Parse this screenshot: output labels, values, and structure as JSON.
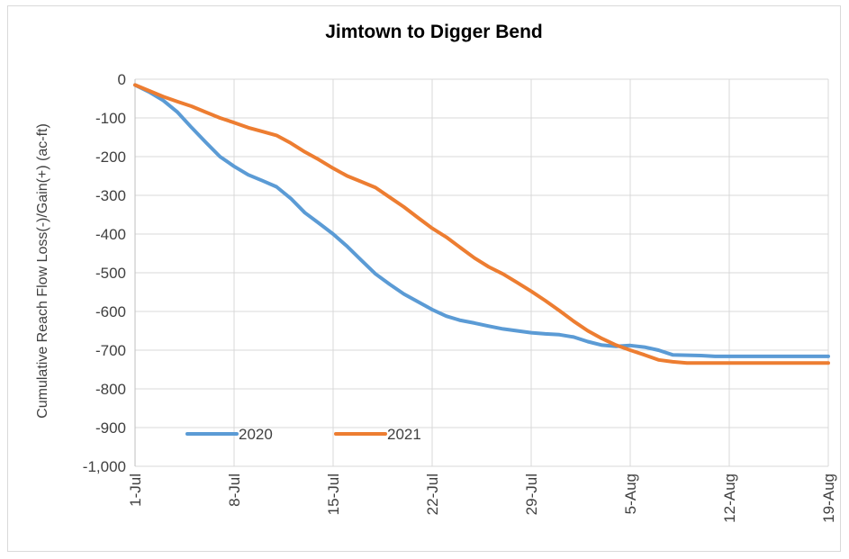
{
  "chart_data": {
    "type": "line",
    "title": "Jimtown to Digger Bend",
    "xlabel": "",
    "ylabel": "Cumulative Reach Flow Loss(-)/Gain(+)  (ac-ft)",
    "x_tick_labels": [
      "1-Jul",
      "8-Jul",
      "15-Jul",
      "22-Jul",
      "29-Jul",
      "5-Aug",
      "12-Aug",
      "19-Aug"
    ],
    "y_tick_labels": [
      "0",
      "-100",
      "-200",
      "-300",
      "-400",
      "-500",
      "-600",
      "-700",
      "-800",
      "-900",
      "-1,000"
    ],
    "ylim": [
      -1000,
      0
    ],
    "xlim": [
      0,
      49
    ],
    "grid": true,
    "legend_position": "bottom-left",
    "x_day_offsets": [
      0,
      1,
      2,
      3,
      4,
      5,
      6,
      7,
      8,
      9,
      10,
      11,
      12,
      13,
      14,
      15,
      16,
      17,
      18,
      19,
      20,
      21,
      22,
      23,
      24,
      25,
      26,
      27,
      28,
      29,
      30,
      31,
      32,
      33,
      34,
      35,
      36,
      37,
      38,
      39,
      40,
      41,
      42,
      43,
      44,
      45,
      46,
      47,
      48,
      49
    ],
    "series": [
      {
        "name": "2020",
        "color": "#5b9bd5",
        "values": [
          -15,
          -33,
          -55,
          -85,
          -125,
          -163,
          -200,
          -225,
          -247,
          -262,
          -278,
          -308,
          -345,
          -372,
          -400,
          -432,
          -468,
          -503,
          -530,
          -555,
          -575,
          -595,
          -612,
          -623,
          -630,
          -638,
          -645,
          -650,
          -655,
          -658,
          -660,
          -666,
          -678,
          -687,
          -690,
          -688,
          -692,
          -700,
          -712,
          -713,
          -714,
          -716,
          -716,
          -716,
          -716,
          -716,
          -716,
          -716,
          -716,
          -716
        ]
      },
      {
        "name": "2021",
        "color": "#ed7d31",
        "values": [
          -15,
          -30,
          -45,
          -58,
          -70,
          -85,
          -100,
          -112,
          -125,
          -135,
          -145,
          -165,
          -188,
          -208,
          -230,
          -250,
          -265,
          -280,
          -305,
          -330,
          -358,
          -385,
          -408,
          -435,
          -462,
          -485,
          -503,
          -525,
          -548,
          -572,
          -598,
          -625,
          -650,
          -670,
          -687,
          -700,
          -712,
          -725,
          -730,
          -733,
          -733,
          -733,
          -733,
          -733,
          -733,
          -733,
          -733,
          -733,
          -733,
          -733
        ]
      }
    ]
  }
}
